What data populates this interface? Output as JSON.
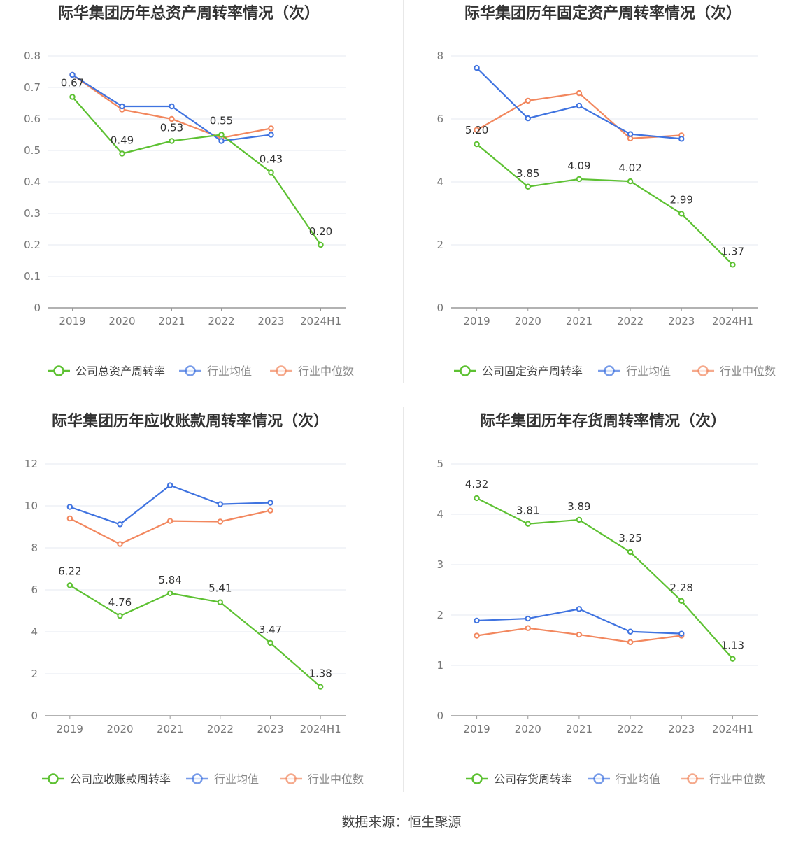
{
  "source": "数据来源：恒生聚源",
  "colors": {
    "company": "#5dc132",
    "avg": "#3f73e0",
    "median": "#f2875e",
    "grid": "#e6e9f2",
    "axis": "#999999"
  },
  "charts": [
    {
      "title": "际华集团历年总资产周转率情况（次）",
      "legend": [
        "公司总资产周转率",
        "行业均值",
        "行业中位数"
      ],
      "y_ticks": [
        "0",
        "0.1",
        "0.2",
        "0.3",
        "0.4",
        "0.5",
        "0.6",
        "0.7",
        "0.8"
      ],
      "data_labels": [
        "0.67",
        "0.49",
        "0.53",
        "0.55",
        "0.43",
        "0.20"
      ]
    },
    {
      "title": "际华集团历年固定资产周转率情况（次）",
      "legend": [
        "公司固定资产周转率",
        "行业均值",
        "行业中位数"
      ],
      "y_ticks": [
        "0",
        "2",
        "4",
        "6",
        "8"
      ],
      "data_labels": [
        "5.20",
        "3.85",
        "4.09",
        "4.02",
        "2.99",
        "1.37"
      ]
    },
    {
      "title": "际华集团历年应收账款周转率情况（次）",
      "legend": [
        "公司应收账款周转率",
        "行业均值",
        "行业中位数"
      ],
      "y_ticks": [
        "0",
        "2",
        "4",
        "6",
        "8",
        "10",
        "12"
      ],
      "data_labels": [
        "6.22",
        "4.76",
        "5.84",
        "5.41",
        "3.47",
        "1.38"
      ]
    },
    {
      "title": "际华集团历年存货周转率情况（次）",
      "legend": [
        "公司存货周转率",
        "行业均值",
        "行业中位数"
      ],
      "y_ticks": [
        "0",
        "1",
        "2",
        "3",
        "4",
        "5"
      ],
      "data_labels": [
        "4.32",
        "3.81",
        "3.89",
        "3.25",
        "2.28",
        "1.13"
      ]
    }
  ],
  "chart_data": [
    {
      "type": "line",
      "title": "际华集团历年总资产周转率情况（次）",
      "x": [
        "2019",
        "2020",
        "2021",
        "2022",
        "2023",
        "2024H1"
      ],
      "ylim": [
        0,
        0.8
      ],
      "legend_position": "bottom",
      "grid": true,
      "series": [
        {
          "name": "公司总资产周转率",
          "values": [
            0.67,
            0.49,
            0.53,
            0.55,
            0.43,
            0.2
          ]
        },
        {
          "name": "行业均值",
          "values": [
            0.74,
            0.64,
            0.64,
            0.53,
            0.55,
            null
          ]
        },
        {
          "name": "行业中位数",
          "values": [
            0.74,
            0.63,
            0.6,
            0.54,
            0.57,
            null
          ]
        }
      ]
    },
    {
      "type": "line",
      "title": "际华集团历年固定资产周转率情况（次）",
      "x": [
        "2019",
        "2020",
        "2021",
        "2022",
        "2023",
        "2024H1"
      ],
      "ylim": [
        0,
        8
      ],
      "legend_position": "bottom",
      "grid": true,
      "series": [
        {
          "name": "公司固定资产周转率",
          "values": [
            5.2,
            3.85,
            4.09,
            4.02,
            2.99,
            1.37
          ]
        },
        {
          "name": "行业均值",
          "values": [
            7.62,
            6.02,
            6.42,
            5.52,
            5.37,
            null
          ]
        },
        {
          "name": "行业中位数",
          "values": [
            5.65,
            6.58,
            6.82,
            5.38,
            5.48,
            null
          ]
        }
      ]
    },
    {
      "type": "line",
      "title": "际华集团历年应收账款周转率情况（次）",
      "x": [
        "2019",
        "2020",
        "2021",
        "2022",
        "2023",
        "2024H1"
      ],
      "ylim": [
        0,
        12
      ],
      "legend_position": "bottom",
      "grid": true,
      "series": [
        {
          "name": "公司应收账款周转率",
          "values": [
            6.22,
            4.76,
            5.84,
            5.41,
            3.47,
            1.38
          ]
        },
        {
          "name": "行业均值",
          "values": [
            9.95,
            9.12,
            10.98,
            10.08,
            10.15,
            null
          ]
        },
        {
          "name": "行业中位数",
          "values": [
            9.4,
            8.18,
            9.28,
            9.25,
            9.78,
            null
          ]
        }
      ]
    },
    {
      "type": "line",
      "title": "际华集团历年存货周转率情况（次）",
      "x": [
        "2019",
        "2020",
        "2021",
        "2022",
        "2023",
        "2024H1"
      ],
      "ylim": [
        0,
        5
      ],
      "legend_position": "bottom",
      "grid": true,
      "series": [
        {
          "name": "公司存货周转率",
          "values": [
            4.32,
            3.81,
            3.89,
            3.25,
            2.28,
            1.13
          ]
        },
        {
          "name": "行业均值",
          "values": [
            1.89,
            1.93,
            2.12,
            1.67,
            1.63,
            null
          ]
        },
        {
          "name": "行业中位数",
          "values": [
            1.59,
            1.74,
            1.61,
            1.46,
            1.59,
            null
          ]
        }
      ]
    }
  ]
}
